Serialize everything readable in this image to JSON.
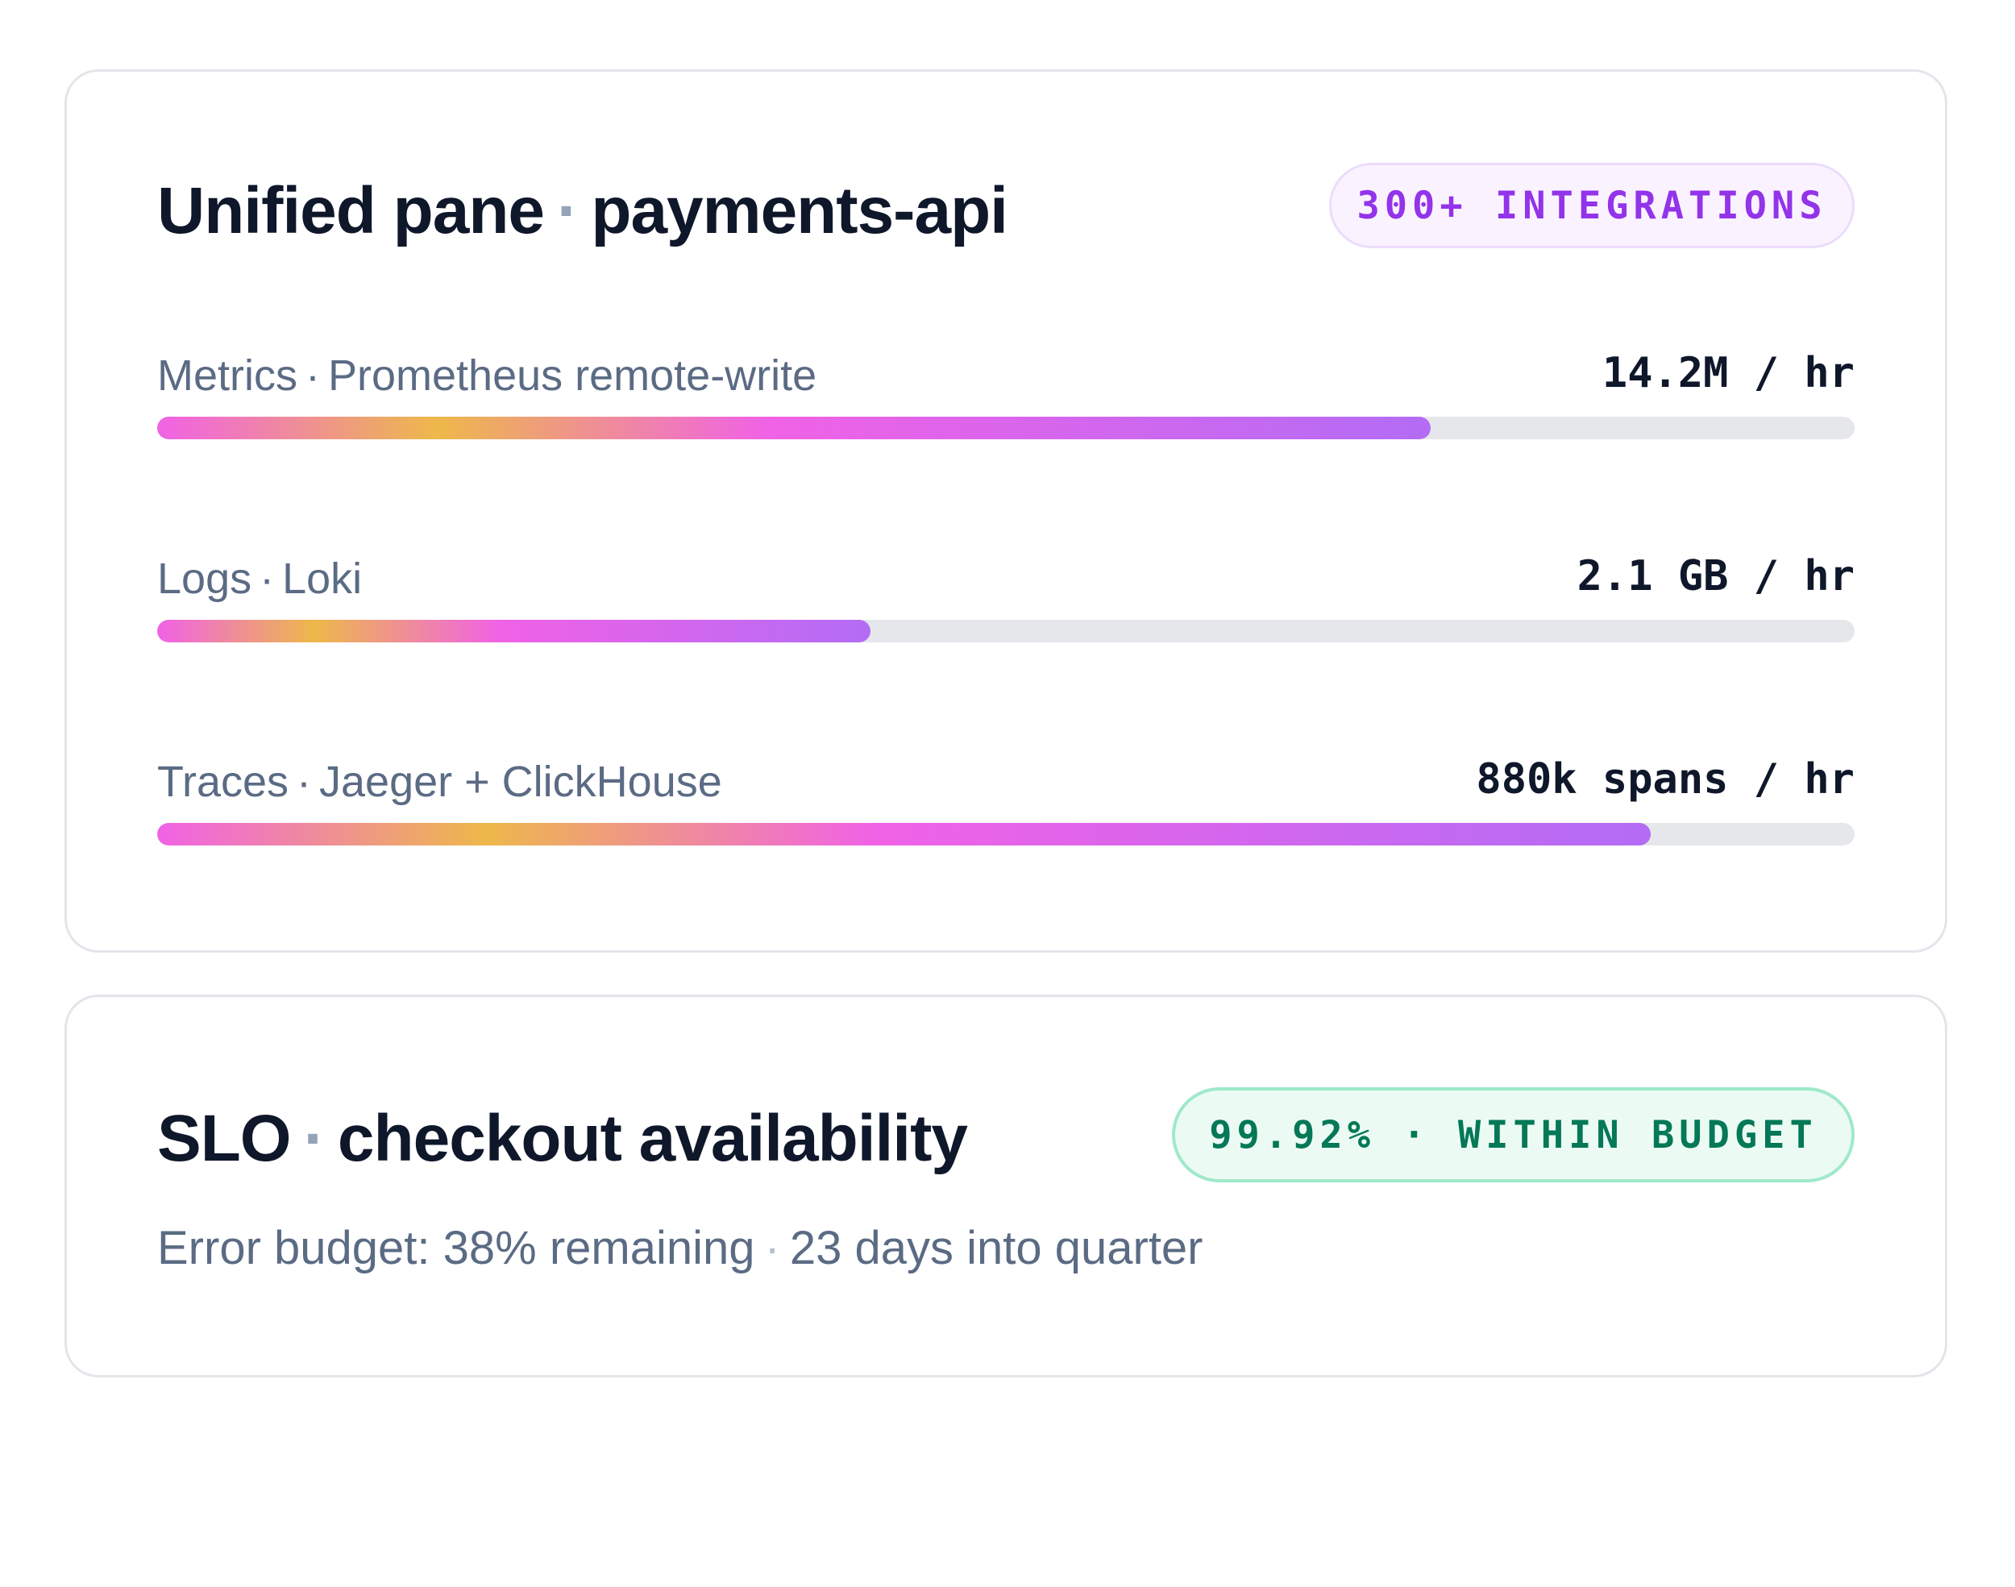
{
  "pane": {
    "title_main": "Unified pane",
    "title_sep": "·",
    "title_service": "payments-api",
    "badge": "300+ INTEGRATIONS",
    "badge_color": "#9333ea",
    "rows": [
      {
        "label_kind": "Metrics",
        "sep": "·",
        "label_source": "Prometheus remote-write",
        "value": "14.2M / hr",
        "fill_fraction": 0.75
      },
      {
        "label_kind": "Logs",
        "sep": "·",
        "label_source": "Loki",
        "value": "2.1 GB / hr",
        "fill_fraction": 0.42
      },
      {
        "label_kind": "Traces",
        "sep": "·",
        "label_source": "Jaeger + ClickHouse",
        "value": "880k spans / hr",
        "fill_fraction": 0.88
      }
    ],
    "bar_gradient": [
      "#f062e6",
      "#eeb84a",
      "#f062e6",
      "#b36cf5"
    ],
    "track_color": "#e5e7eb"
  },
  "slo": {
    "title_main": "SLO",
    "title_sep": "·",
    "title_target": "checkout availability",
    "badge": "99.92% · WITHIN BUDGET",
    "badge_color": "#047857",
    "sub_budget": "Error budget: 38% remaining",
    "sub_sep": "·",
    "sub_days": "23 days into quarter"
  }
}
